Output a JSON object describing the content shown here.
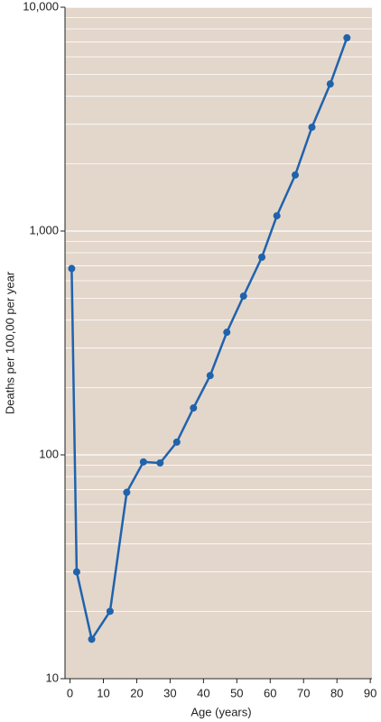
{
  "chart_data": {
    "type": "line",
    "x_label": "Age (years)",
    "y_label": "Deaths per 100,00 per year",
    "x": [
      0.5,
      2,
      6.5,
      12,
      17,
      22,
      27,
      32,
      37,
      42,
      47,
      52,
      57.5,
      62,
      67.5,
      72.5,
      78,
      83
    ],
    "series": [
      {
        "color": "#1f63ad",
        "values": [
          680,
          30,
          15,
          20,
          68,
          93,
          92,
          114,
          162,
          226,
          353,
          512,
          764,
          1170,
          1780,
          2910,
          4540,
          7300
        ]
      }
    ],
    "xlim": [
      -1.5,
      90.5
    ],
    "xticks": [
      0,
      10,
      20,
      30,
      40,
      50,
      60,
      70,
      80,
      90
    ],
    "ylim": [
      10,
      10000
    ],
    "yticks": [
      10,
      100,
      {
        "value": 1000,
        "label": "1,000"
      },
      {
        "value": 10000,
        "label": "10,000"
      }
    ],
    "log_y": true,
    "grid": true,
    "minor_grid": true,
    "background": "#e3d6cb"
  }
}
